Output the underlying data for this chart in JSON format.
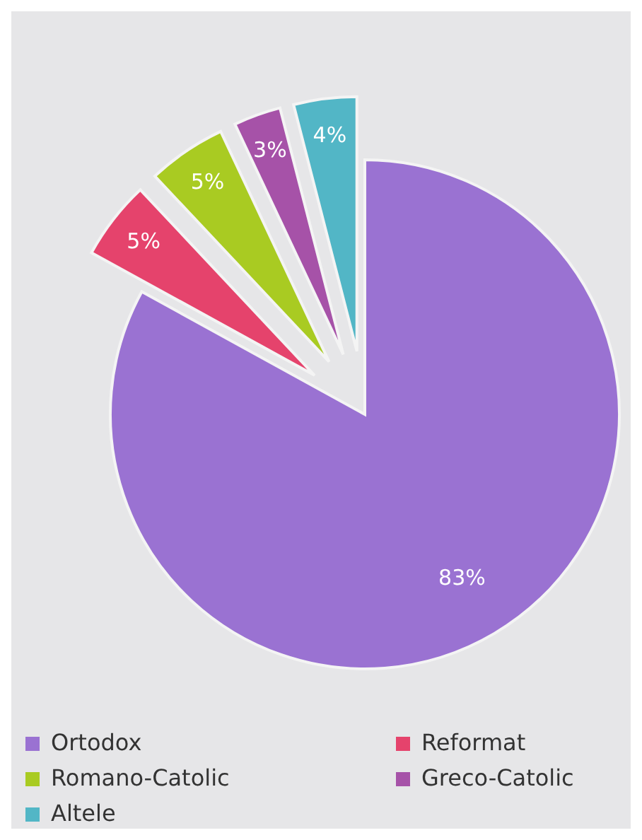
{
  "chart_data": {
    "type": "pie",
    "categories": [
      "Ortodox",
      "Reformat",
      "Romano-Catolic",
      "Greco-Catolic",
      "Altele"
    ],
    "values": [
      83,
      5,
      5,
      3,
      4
    ],
    "colors": [
      "#9a72d2",
      "#e5436c",
      "#a9cb22",
      "#a652a8",
      "#52b6c6"
    ],
    "value_labels": [
      "83%",
      "5%",
      "5%",
      "3%",
      "4%"
    ],
    "legend": "bottom"
  }
}
